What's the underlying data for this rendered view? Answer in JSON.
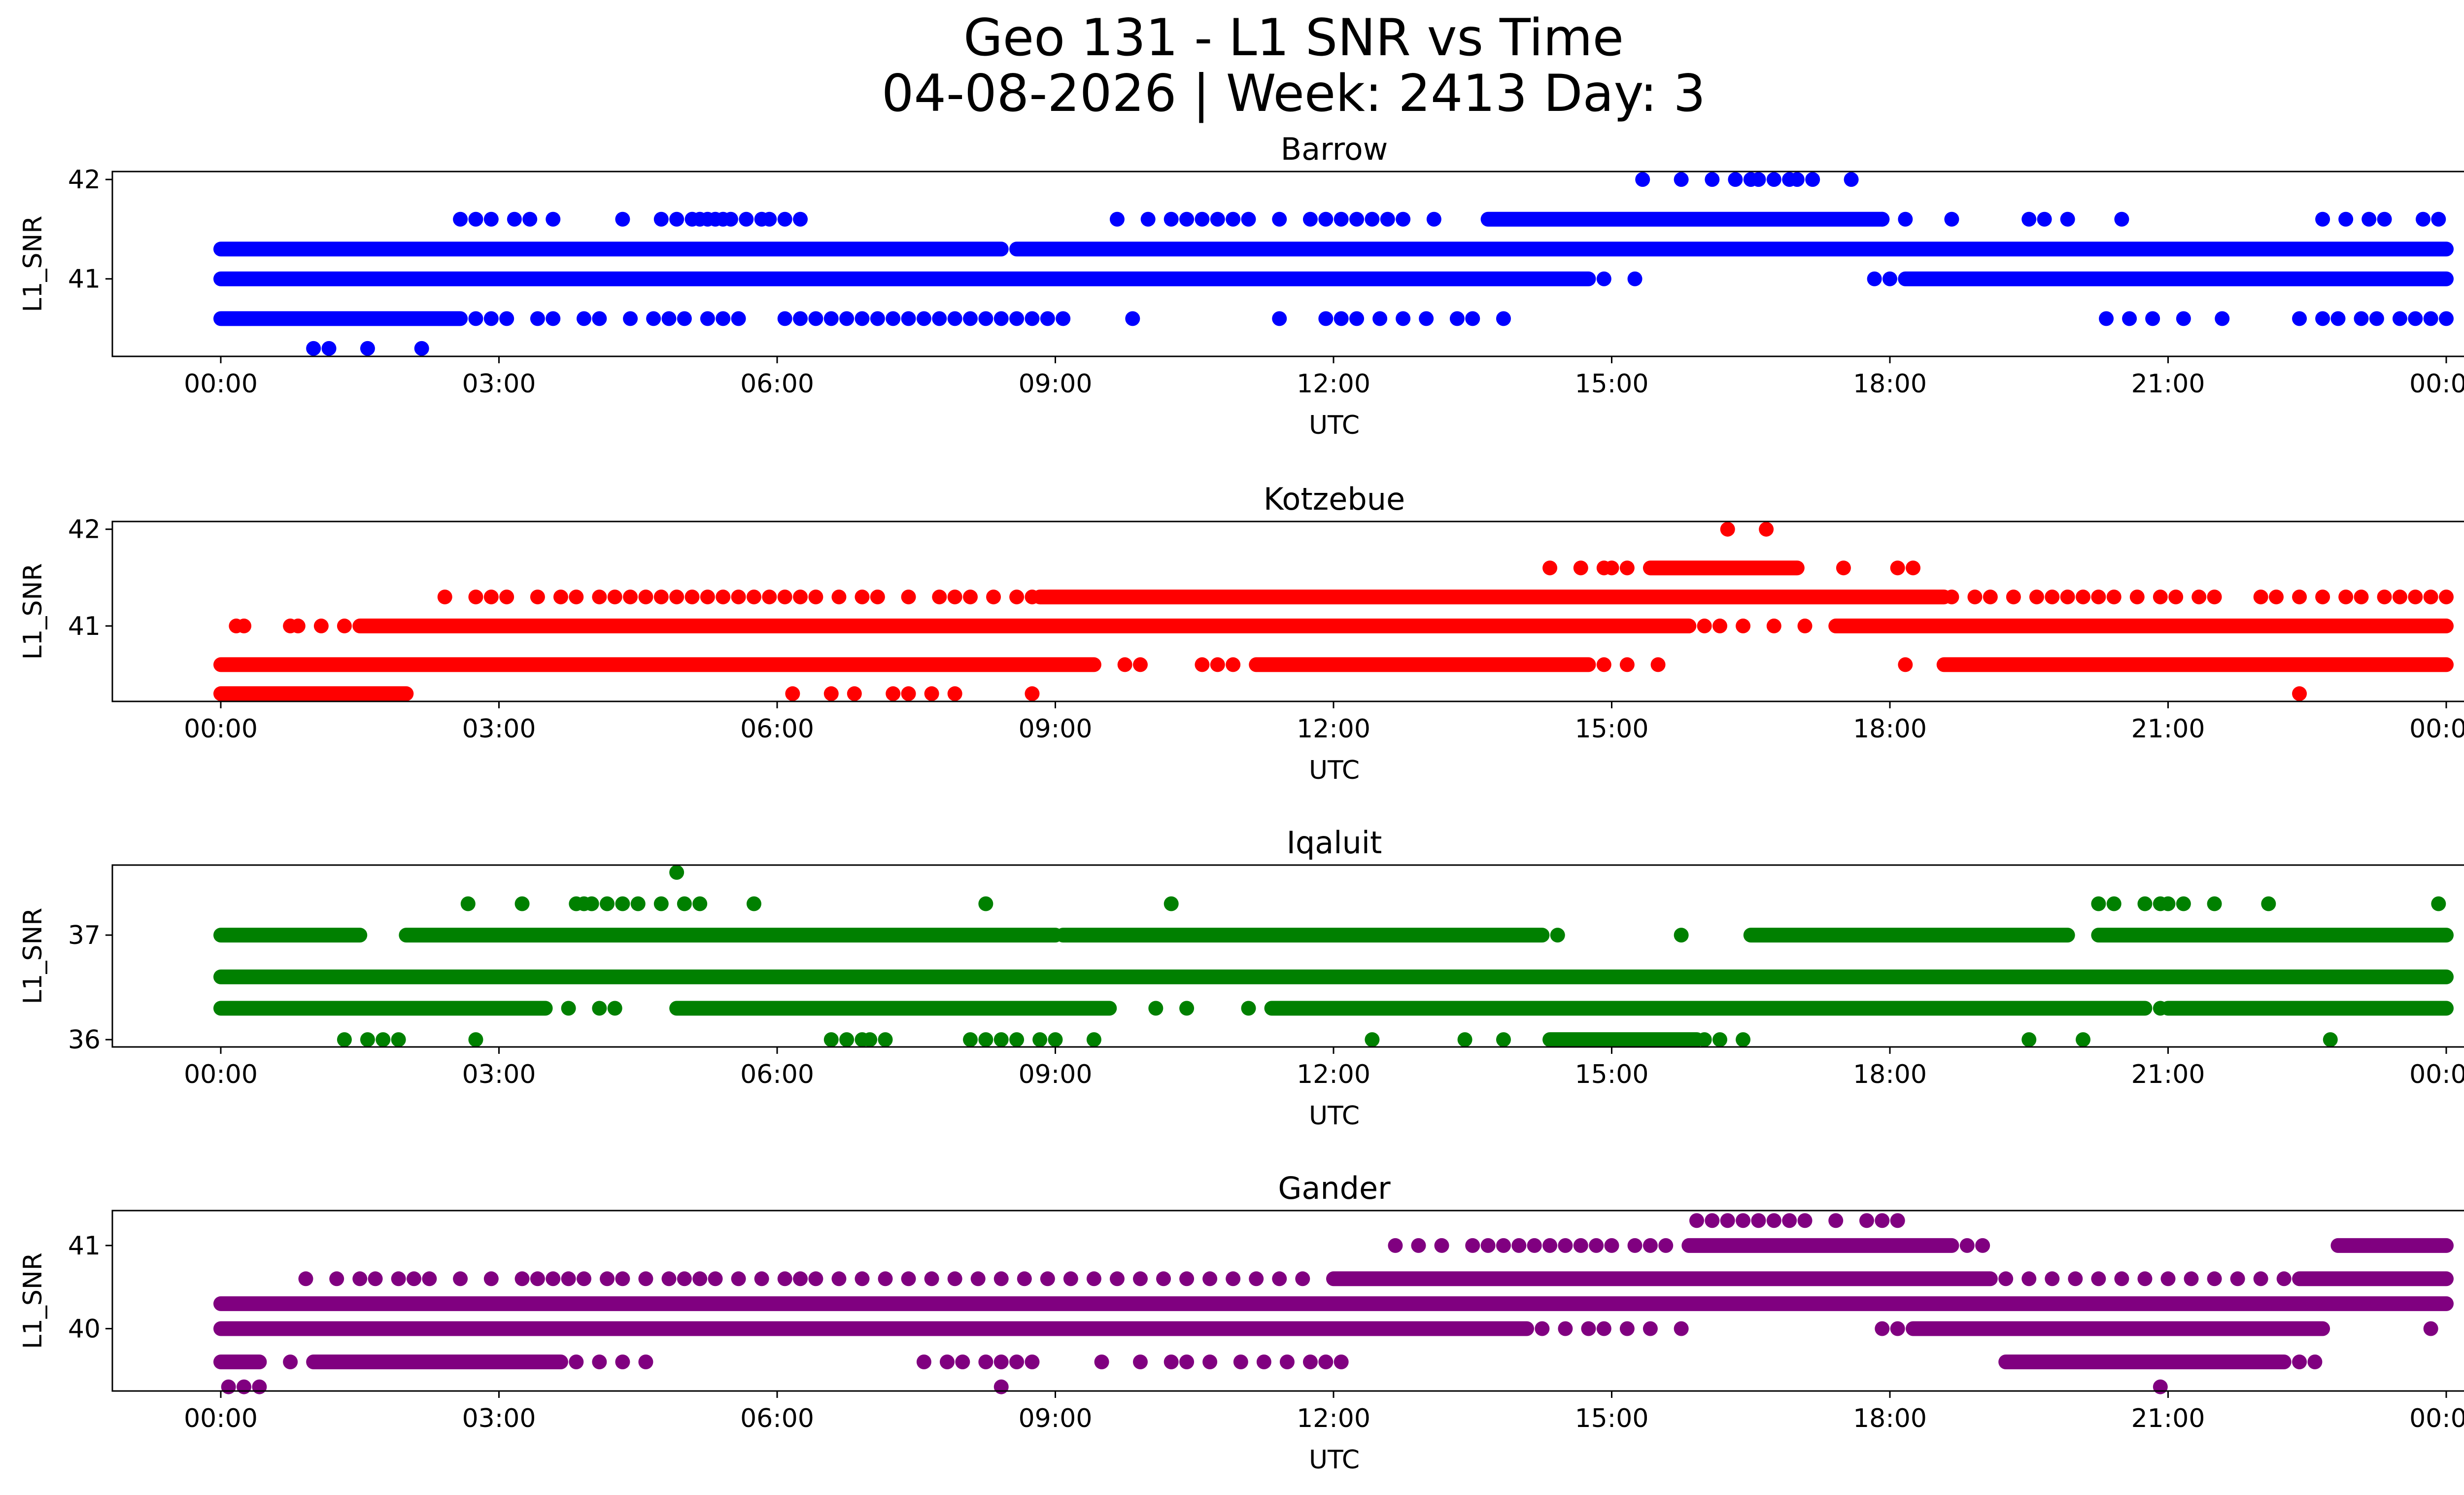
{
  "figure": {
    "title_line1": "Geo 131 - L1 SNR vs Time",
    "title_line2": "04-08-2026 | Week: 2413 Day: 3"
  },
  "chart_data": [
    {
      "type": "scatter",
      "title": "Barrow",
      "xlabel": "UTC",
      "ylabel": "L1_SNR",
      "color": "#0000ff",
      "xlim": [
        "2026-04-08T00:00",
        "2026-04-09T00:00"
      ],
      "ylim": [
        40.22,
        42.08
      ],
      "xticks": [
        "00:00",
        "03:00",
        "06:00",
        "09:00",
        "12:00",
        "15:00",
        "18:00",
        "21:00",
        "00:00"
      ],
      "yticks": [
        41,
        42
      ],
      "bands": [
        {
          "y": 42.0,
          "ranges": [],
          "points": [
            "15:20",
            "15:45",
            "16:05",
            "16:20",
            "16:30",
            "16:35",
            "16:45",
            "16:55",
            "17:00",
            "17:10",
            "17:35"
          ]
        },
        {
          "y": 41.6,
          "ranges": [
            [
              "13:40",
              "17:55"
            ]
          ],
          "points": [
            "02:35",
            "02:45",
            "02:55",
            "03:10",
            "03:20",
            "03:35",
            "04:20",
            "04:45",
            "04:55",
            "05:05",
            "05:10",
            "05:15",
            "05:20",
            "05:25",
            "05:30",
            "05:40",
            "05:50",
            "05:55",
            "06:05",
            "06:15",
            "09:40",
            "10:00",
            "10:15",
            "10:25",
            "10:35",
            "10:45",
            "10:55",
            "11:05",
            "11:25",
            "11:45",
            "11:55",
            "12:05",
            "12:15",
            "12:25",
            "12:35",
            "12:45",
            "13:05",
            "17:55",
            "18:10",
            "18:40",
            "19:30",
            "19:40",
            "19:55",
            "20:30",
            "22:40",
            "22:55",
            "23:10",
            "23:20",
            "23:45",
            "23:55"
          ]
        },
        {
          "y": 41.3,
          "ranges": [
            [
              "00:00",
              "08:25"
            ],
            [
              "08:35",
              "24:00"
            ]
          ],
          "points": []
        },
        {
          "y": 41.0,
          "ranges": [
            [
              "00:00",
              "14:45"
            ],
            [
              "18:10",
              "24:00"
            ]
          ],
          "points": [
            "14:55",
            "15:15",
            "17:50",
            "18:00"
          ]
        },
        {
          "y": 40.6,
          "ranges": [
            [
              "00:00",
              "02:35"
            ]
          ],
          "points": [
            "02:45",
            "02:55",
            "03:05",
            "03:25",
            "03:35",
            "03:55",
            "04:05",
            "04:25",
            "04:40",
            "04:50",
            "05:00",
            "05:15",
            "05:25",
            "05:35",
            "06:05",
            "06:15",
            "06:25",
            "06:35",
            "06:45",
            "06:55",
            "07:05",
            "07:15",
            "07:25",
            "07:35",
            "07:45",
            "07:55",
            "08:05",
            "08:15",
            "08:25",
            "08:35",
            "08:45",
            "08:55",
            "09:05",
            "09:50",
            "11:25",
            "11:55",
            "12:05",
            "12:15",
            "12:30",
            "12:45",
            "13:00",
            "13:20",
            "13:30",
            "13:50",
            "20:20",
            "20:35",
            "20:50",
            "21:10",
            "21:35",
            "22:25",
            "22:40",
            "22:50",
            "23:05",
            "23:15",
            "23:30",
            "23:40",
            "23:50",
            "24:00"
          ]
        },
        {
          "y": 40.3,
          "ranges": [],
          "points": [
            "01:00",
            "01:10",
            "01:35",
            "02:10"
          ]
        }
      ]
    },
    {
      "type": "scatter",
      "title": "Kotzebue",
      "xlabel": "UTC",
      "ylabel": "L1_SNR",
      "color": "#ff0000",
      "xlim": [
        "2026-04-08T00:00",
        "2026-04-09T00:00"
      ],
      "ylim": [
        40.22,
        42.08
      ],
      "xticks": [
        "00:00",
        "03:00",
        "06:00",
        "09:00",
        "12:00",
        "15:00",
        "18:00",
        "21:00",
        "00:00"
      ],
      "yticks": [
        41,
        42
      ],
      "bands": [
        {
          "y": 42.0,
          "ranges": [],
          "points": [
            "16:15",
            "16:40"
          ]
        },
        {
          "y": 41.6,
          "ranges": [
            [
              "15:25",
              "17:00"
            ]
          ],
          "points": [
            "14:20",
            "14:40",
            "14:55",
            "15:00",
            "15:10",
            "17:30",
            "18:05",
            "18:15"
          ]
        },
        {
          "y": 41.3,
          "ranges": [
            [
              "08:50",
              "18:35"
            ]
          ],
          "points": [
            "02:25",
            "02:45",
            "02:55",
            "03:05",
            "03:25",
            "03:40",
            "03:50",
            "04:05",
            "04:15",
            "04:25",
            "04:35",
            "04:45",
            "04:55",
            "05:05",
            "05:15",
            "05:25",
            "05:35",
            "05:45",
            "05:55",
            "06:05",
            "06:15",
            "06:25",
            "06:40",
            "06:55",
            "07:05",
            "07:25",
            "07:45",
            "07:55",
            "08:05",
            "08:20",
            "08:35",
            "08:45",
            "18:40",
            "18:55",
            "19:05",
            "19:20",
            "19:35",
            "19:45",
            "19:55",
            "20:05",
            "20:15",
            "20:25",
            "20:40",
            "20:55",
            "21:05",
            "21:20",
            "21:30",
            "22:00",
            "22:10",
            "22:25",
            "22:40",
            "22:55",
            "23:05",
            "23:20",
            "23:30",
            "23:40",
            "23:50",
            "24:00"
          ]
        },
        {
          "y": 41.0,
          "ranges": [
            [
              "01:30",
              "15:50"
            ],
            [
              "17:25",
              "24:00"
            ]
          ],
          "points": [
            "00:10",
            "00:15",
            "00:45",
            "00:50",
            "01:05",
            "01:20",
            "16:00",
            "16:10",
            "16:25",
            "16:45",
            "17:05"
          ]
        },
        {
          "y": 40.6,
          "ranges": [
            [
              "00:00",
              "09:25"
            ],
            [
              "11:10",
              "14:45"
            ],
            [
              "18:35",
              "24:00"
            ]
          ],
          "points": [
            "09:45",
            "09:55",
            "10:35",
            "10:45",
            "10:55",
            "14:55",
            "15:10",
            "15:30",
            "18:10"
          ]
        },
        {
          "y": 40.3,
          "ranges": [
            [
              "00:00",
              "02:00"
            ]
          ],
          "points": [
            "06:10",
            "06:35",
            "06:50",
            "07:15",
            "07:25",
            "07:40",
            "07:55",
            "08:45",
            "22:25"
          ]
        }
      ]
    },
    {
      "type": "scatter",
      "title": "Iqaluit",
      "xlabel": "UTC",
      "ylabel": "L1_SNR",
      "color": "#008000",
      "xlim": [
        "2026-04-08T00:00",
        "2026-04-09T00:00"
      ],
      "ylim": [
        35.93,
        37.67
      ],
      "xticks": [
        "00:00",
        "03:00",
        "06:00",
        "09:00",
        "12:00",
        "15:00",
        "18:00",
        "21:00",
        "00:00"
      ],
      "yticks": [
        36,
        37
      ],
      "bands": [
        {
          "y": 37.6,
          "ranges": [],
          "points": [
            "04:55"
          ]
        },
        {
          "y": 37.3,
          "ranges": [],
          "points": [
            "02:40",
            "03:15",
            "03:50",
            "03:55",
            "04:00",
            "04:10",
            "04:20",
            "04:30",
            "04:45",
            "05:00",
            "05:10",
            "05:45",
            "08:15",
            "10:15",
            "20:15",
            "20:25",
            "20:45",
            "20:55",
            "21:00",
            "21:10",
            "21:30",
            "22:05",
            "23:55"
          ]
        },
        {
          "y": 37.0,
          "ranges": [
            [
              "00:00",
              "01:30"
            ],
            [
              "02:00",
              "09:00"
            ],
            [
              "09:05",
              "14:15"
            ],
            [
              "16:30",
              "19:55"
            ],
            [
              "20:15",
              "24:00"
            ]
          ],
          "points": [
            "14:25",
            "15:45"
          ]
        },
        {
          "y": 36.6,
          "ranges": [
            [
              "00:00",
              "24:00"
            ]
          ],
          "points": []
        },
        {
          "y": 36.3,
          "ranges": [
            [
              "00:00",
              "03:30"
            ],
            [
              "04:55",
              "09:35"
            ],
            [
              "11:20",
              "20:45"
            ],
            [
              "21:00",
              "24:00"
            ]
          ],
          "points": [
            "03:45",
            "04:05",
            "04:15",
            "10:05",
            "10:25",
            "11:05",
            "20:55"
          ]
        },
        {
          "y": 36.0,
          "ranges": [
            [
              "14:20",
              "15:55"
            ]
          ],
          "points": [
            "01:20",
            "01:35",
            "01:45",
            "01:55",
            "02:45",
            "06:35",
            "06:45",
            "06:55",
            "07:00",
            "07:10",
            "08:05",
            "08:15",
            "08:25",
            "08:35",
            "08:50",
            "09:00",
            "09:25",
            "12:25",
            "13:25",
            "13:50",
            "16:00",
            "16:10",
            "16:25",
            "19:30",
            "20:05",
            "22:45"
          ]
        }
      ]
    },
    {
      "type": "scatter",
      "title": "Gander",
      "xlabel": "UTC",
      "ylabel": "L1_SNR",
      "color": "#800080",
      "xlim": [
        "2026-04-08T00:00",
        "2026-04-09T00:00"
      ],
      "ylim": [
        39.25,
        41.42
      ],
      "xticks": [
        "00:00",
        "03:00",
        "06:00",
        "09:00",
        "12:00",
        "15:00",
        "18:00",
        "21:00",
        "00:00"
      ],
      "yticks": [
        40,
        41
      ],
      "bands": [
        {
          "y": 41.3,
          "ranges": [],
          "points": [
            "15:55",
            "16:05",
            "16:15",
            "16:25",
            "16:35",
            "16:45",
            "16:55",
            "17:05",
            "17:25",
            "17:45",
            "17:55",
            "18:05"
          ]
        },
        {
          "y": 41.0,
          "ranges": [
            [
              "15:50",
              "18:40"
            ],
            [
              "22:50",
              "24:00"
            ]
          ],
          "points": [
            "12:40",
            "12:55",
            "13:10",
            "13:30",
            "13:40",
            "13:50",
            "14:00",
            "14:10",
            "14:20",
            "14:30",
            "14:40",
            "14:50",
            "15:00",
            "15:15",
            "15:25",
            "15:35",
            "18:50",
            "19:00"
          ]
        },
        {
          "y": 40.6,
          "ranges": [
            [
              "12:00",
              "19:05"
            ],
            [
              "22:25",
              "24:00"
            ]
          ],
          "points": [
            "00:55",
            "01:15",
            "01:30",
            "01:40",
            "01:55",
            "02:05",
            "02:15",
            "02:35",
            "02:55",
            "03:15",
            "03:25",
            "03:35",
            "03:45",
            "03:55",
            "04:10",
            "04:20",
            "04:35",
            "04:50",
            "05:00",
            "05:10",
            "05:20",
            "05:35",
            "05:50",
            "06:05",
            "06:15",
            "06:25",
            "06:40",
            "06:55",
            "07:10",
            "07:25",
            "07:40",
            "07:55",
            "08:10",
            "08:25",
            "08:40",
            "08:55",
            "09:10",
            "09:25",
            "09:40",
            "09:55",
            "10:10",
            "10:25",
            "10:40",
            "10:55",
            "11:10",
            "11:25",
            "11:40",
            "19:15",
            "19:30",
            "19:45",
            "20:00",
            "20:15",
            "20:30",
            "20:45",
            "21:00",
            "21:15",
            "21:30",
            "21:45",
            "22:00",
            "22:15"
          ]
        },
        {
          "y": 40.3,
          "ranges": [
            [
              "00:00",
              "24:00"
            ]
          ],
          "points": []
        },
        {
          "y": 40.0,
          "ranges": [
            [
              "00:00",
              "14:05"
            ],
            [
              "18:15",
              "22:40"
            ]
          ],
          "points": [
            "14:15",
            "14:30",
            "14:45",
            "14:55",
            "15:10",
            "15:25",
            "15:45",
            "17:55",
            "18:05",
            "23:50"
          ]
        },
        {
          "y": 39.6,
          "ranges": [
            [
              "00:00",
              "00:25"
            ],
            [
              "01:00",
              "03:40"
            ],
            [
              "19:15",
              "22:15"
            ]
          ],
          "points": [
            "00:45",
            "03:50",
            "04:05",
            "04:20",
            "04:35",
            "07:35",
            "07:50",
            "08:00",
            "08:15",
            "08:25",
            "08:35",
            "08:45",
            "09:30",
            "09:55",
            "10:15",
            "10:25",
            "10:40",
            "11:00",
            "11:15",
            "11:30",
            "11:45",
            "11:55",
            "12:05",
            "22:25",
            "22:35"
          ]
        },
        {
          "y": 39.3,
          "ranges": [],
          "points": [
            "00:05",
            "00:15",
            "00:25",
            "08:25",
            "20:55"
          ]
        }
      ]
    }
  ]
}
